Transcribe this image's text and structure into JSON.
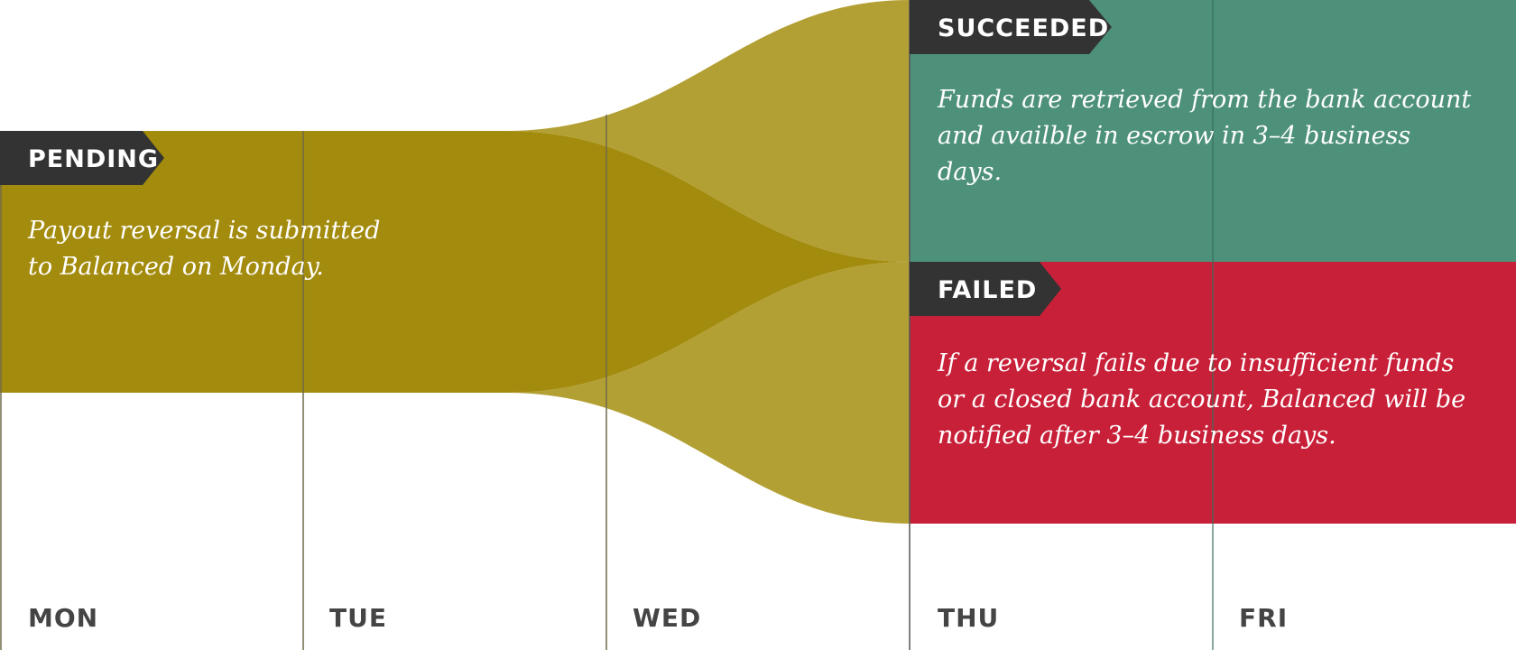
{
  "stages": {
    "pending": {
      "label": "PENDING",
      "description": "Payout reversal is submitted to Balanced on Monday.",
      "color": "#a38b0d"
    },
    "succeeded": {
      "label": "SUCCEEDED",
      "description": "Funds are retrieved from the bank account and availble in escrow in 3–4 business days.",
      "color": "#4e917a"
    },
    "failed": {
      "label": "FAILED",
      "description": "If a reversal fails due to insufficient funds or a closed bank account, Balanced will be notified after 3–4 business days.",
      "color": "#c82038"
    }
  },
  "days": [
    "MON",
    "TUE",
    "WED",
    "THU",
    "FRI"
  ],
  "colors": {
    "flow_light": "#b3a034",
    "tag_background": "#333333",
    "day_text": "#444444",
    "divider": "#8a8a8a"
  }
}
